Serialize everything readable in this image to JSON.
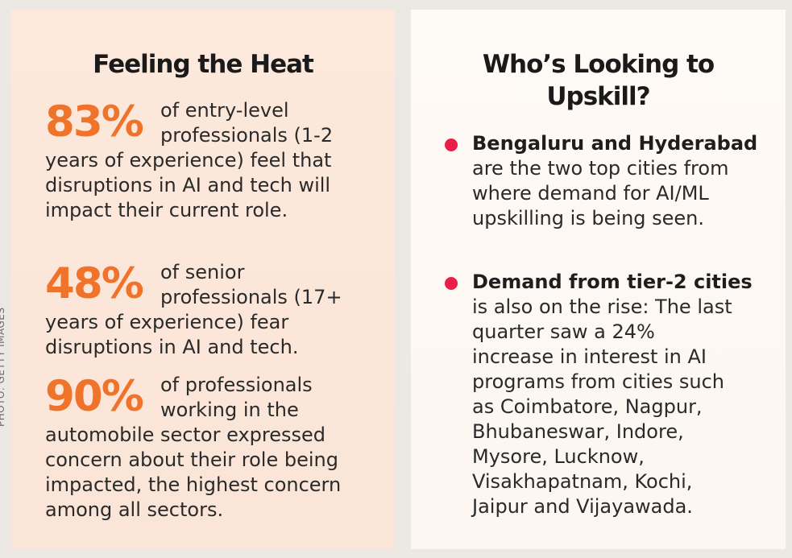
{
  "credit": "PHOTO: GETTY IMAGES",
  "left": {
    "title": "Feeling the Heat",
    "stats": [
      {
        "value": "83%",
        "line1": "of entry-level",
        "text": "professionals (1-2 years of experience) feel that disruptions in AI and tech will impact their current role."
      },
      {
        "value": "48%",
        "line1": "of senior",
        "text": "professionals (17+ years of experience) fear disruptions in AI and tech."
      },
      {
        "value": "90%",
        "line1": "of professionals",
        "text": "working in the automobile sector expressed concern about their role being impacted, the highest concern among all sectors."
      }
    ]
  },
  "right": {
    "title": "Who’s Looking to Upskill?",
    "bullets": [
      {
        "heading": "Bengaluru and Hyderabad",
        "text": "are the two top cities from where demand for AI/ML upskilling is being seen."
      },
      {
        "heading": "Demand from tier-2 cities",
        "text": "is also on the rise: The last quarter saw a 24% increase in interest in AI programs from cities such as Coimbatore, Nagpur, Bhubaneswar, Indore, Mysore, Lucknow, Visakhapatnam, Kochi, Jaipur and Vijayawada."
      }
    ]
  },
  "colors": {
    "percent": "#f0732b",
    "bullet": "#ea1f48",
    "left_bg": "#fde9dc",
    "right_bg": "#fefaf6"
  }
}
